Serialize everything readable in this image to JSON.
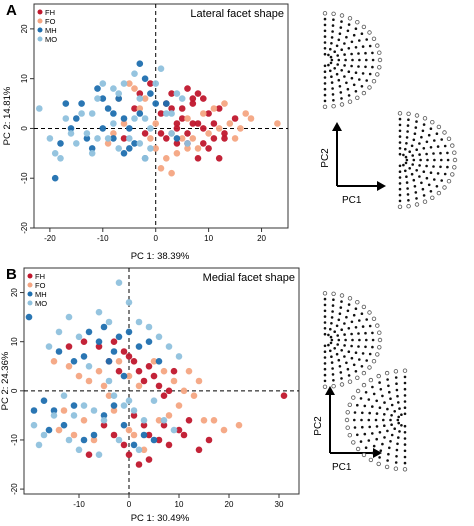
{
  "colors": {
    "FH": "#c0172d",
    "FO": "#f4a582",
    "MH": "#1f6faf",
    "MO": "#8fc1dd",
    "axis": "#333333",
    "landmark": "#555555"
  },
  "chart_data": [
    {
      "type": "scatter",
      "panel_label": "A",
      "title": "Lateral facet shape",
      "xlabel": "PC 1: 38.39%",
      "ylabel": "PC 2: 14.81%",
      "xlim": [
        -23,
        25
      ],
      "ylim": [
        -20,
        25
      ],
      "xticks": [
        -20,
        -10,
        0,
        10,
        20
      ],
      "yticks": [
        -20,
        -10,
        0,
        10,
        20
      ],
      "grid": false,
      "legend_position": "top-left",
      "zero_lines": "dashed",
      "series": [
        {
          "name": "FH",
          "points": [
            [
              1,
              3
            ],
            [
              2,
              -2
            ],
            [
              3,
              4
            ],
            [
              4,
              0
            ],
            [
              5,
              2
            ],
            [
              6,
              -1
            ],
            [
              7,
              5
            ],
            [
              8,
              1
            ],
            [
              9,
              0
            ],
            [
              10,
              3
            ],
            [
              11,
              -2
            ],
            [
              12,
              4
            ],
            [
              13,
              -2
            ],
            [
              6,
              8
            ],
            [
              8,
              7
            ],
            [
              7,
              6
            ],
            [
              3,
              7
            ],
            [
              -1,
              9
            ],
            [
              10,
              -4
            ],
            [
              5,
              4
            ],
            [
              4,
              -3
            ],
            [
              9,
              -3
            ],
            [
              2,
              5
            ],
            [
              11,
              1
            ],
            [
              6,
              -3
            ],
            [
              -3,
              7
            ],
            [
              -4,
              4
            ],
            [
              -2,
              -1
            ],
            [
              -6,
              -2
            ],
            [
              1,
              -1
            ],
            [
              8,
              -6
            ],
            [
              12,
              -6
            ],
            [
              13,
              -1
            ],
            [
              15,
              2
            ],
            [
              4,
              1
            ],
            [
              7,
              1
            ],
            [
              9,
              6
            ]
          ]
        },
        {
          "name": "FO",
          "points": [
            [
              2,
              -6
            ],
            [
              4,
              -5
            ],
            [
              6,
              -4
            ],
            [
              8,
              -4
            ],
            [
              10,
              -1
            ],
            [
              12,
              0
            ],
            [
              14,
              1
            ],
            [
              16,
              0
            ],
            [
              18,
              2
            ],
            [
              23,
              1
            ],
            [
              -5,
              9
            ],
            [
              -4,
              8
            ],
            [
              -2,
              6
            ],
            [
              0,
              1
            ],
            [
              -1,
              -2
            ],
            [
              3,
              -1
            ],
            [
              5,
              -2
            ],
            [
              7,
              -2
            ],
            [
              9,
              3
            ],
            [
              11,
              4
            ],
            [
              -6,
              1
            ],
            [
              -8,
              -1
            ],
            [
              -9,
              -3
            ],
            [
              15,
              -2
            ],
            [
              17,
              3
            ],
            [
              1,
              -8
            ],
            [
              3,
              -9
            ],
            [
              -3,
              4
            ],
            [
              -7,
              6
            ],
            [
              13,
              5
            ],
            [
              6,
              2
            ],
            [
              0,
              -4
            ]
          ]
        },
        {
          "name": "MH",
          "points": [
            [
              -17,
              5
            ],
            [
              -15,
              2
            ],
            [
              -13,
              -2
            ],
            [
              -12,
              -4
            ],
            [
              -10,
              0
            ],
            [
              -9,
              4
            ],
            [
              -8,
              3
            ],
            [
              -7,
              6
            ],
            [
              -6,
              2
            ],
            [
              -5,
              0
            ],
            [
              -4,
              -3
            ],
            [
              -3,
              3
            ],
            [
              -2,
              10
            ],
            [
              -1,
              7
            ],
            [
              0,
              5
            ],
            [
              -19,
              -10
            ],
            [
              -18,
              -3
            ],
            [
              -11,
              8
            ],
            [
              -8,
              -2
            ],
            [
              -5,
              -4
            ],
            [
              -2,
              -6
            ],
            [
              -3,
              13
            ],
            [
              2,
              5
            ],
            [
              4,
              -2
            ],
            [
              -14,
              5
            ],
            [
              -16,
              0
            ],
            [
              -10,
              6
            ],
            [
              -6,
              -5
            ]
          ]
        },
        {
          "name": "MO",
          "points": [
            [
              -22,
              4
            ],
            [
              -20,
              -2
            ],
            [
              -18,
              -6
            ],
            [
              -16,
              -1
            ],
            [
              -14,
              3
            ],
            [
              -13,
              -1
            ],
            [
              -12,
              -5
            ],
            [
              -11,
              6
            ],
            [
              -10,
              9
            ],
            [
              -9,
              -2
            ],
            [
              -8,
              1
            ],
            [
              -7,
              7
            ],
            [
              -6,
              9
            ],
            [
              -5,
              -2
            ],
            [
              -4,
              2
            ],
            [
              -3,
              6
            ],
            [
              -2,
              -6
            ],
            [
              -1,
              0
            ],
            [
              0,
              9
            ],
            [
              1,
              12
            ],
            [
              2,
              3
            ],
            [
              3,
              -1
            ],
            [
              4,
              7
            ],
            [
              5,
              6
            ],
            [
              6,
              -3
            ],
            [
              -15,
              -3
            ],
            [
              -17,
              2
            ],
            [
              -11,
              -2
            ],
            [
              -19,
              -5
            ],
            [
              -12,
              3
            ],
            [
              -2,
              2
            ],
            [
              -7,
              -4
            ],
            [
              -3,
              -3
            ],
            [
              3,
              3
            ],
            [
              -1,
              -4
            ],
            [
              -8,
              8
            ],
            [
              -4,
              11
            ]
          ]
        }
      ]
    },
    {
      "type": "scatter",
      "panel_label": "B",
      "title": "Medial facet shape",
      "xlabel": "PC 1: 30.49%",
      "ylabel": "PC 2: 24.36%",
      "xlim": [
        -21,
        34
      ],
      "ylim": [
        -21,
        25
      ],
      "xticks": [
        -10,
        0,
        10,
        20,
        30
      ],
      "yticks": [
        -20,
        -10,
        0,
        10,
        20
      ],
      "grid": false,
      "legend_position": "top-left",
      "zero_lines": "dashed",
      "series": [
        {
          "name": "FH",
          "points": [
            [
              -3,
              10
            ],
            [
              -1,
              8
            ],
            [
              0,
              7
            ],
            [
              1,
              6
            ],
            [
              2,
              4
            ],
            [
              3,
              2
            ],
            [
              4,
              5
            ],
            [
              5,
              3
            ],
            [
              6,
              1
            ],
            [
              7,
              -1
            ],
            [
              8,
              0
            ],
            [
              -6,
              9
            ],
            [
              -4,
              6
            ],
            [
              -2,
              4
            ],
            [
              1,
              -5
            ],
            [
              3,
              -7
            ],
            [
              4,
              -9
            ],
            [
              6,
              -10
            ],
            [
              8,
              -11
            ],
            [
              10,
              -8
            ],
            [
              12,
              -6
            ],
            [
              14,
              -12
            ],
            [
              -5,
              -7
            ],
            [
              -3,
              -9
            ],
            [
              -1,
              -11
            ],
            [
              0,
              -13
            ],
            [
              2,
              -15
            ],
            [
              4,
              -14
            ],
            [
              7,
              -7
            ],
            [
              11,
              -9
            ],
            [
              31,
              -1
            ],
            [
              16,
              -10
            ],
            [
              -12,
              9
            ],
            [
              -9,
              10
            ],
            [
              -8,
              -13
            ],
            [
              9,
              4
            ]
          ]
        },
        {
          "name": "FO",
          "points": [
            [
              -15,
              6
            ],
            [
              -12,
              5
            ],
            [
              -10,
              3
            ],
            [
              -8,
              2
            ],
            [
              -6,
              4
            ],
            [
              -5,
              1
            ],
            [
              -4,
              -1
            ],
            [
              -2,
              6
            ],
            [
              0,
              3
            ],
            [
              2,
              1
            ],
            [
              5,
              6
            ],
            [
              7,
              4
            ],
            [
              9,
              2
            ],
            [
              11,
              0
            ],
            [
              12,
              4
            ],
            [
              13,
              -1
            ],
            [
              15,
              -6
            ],
            [
              17,
              -6
            ],
            [
              19,
              -8
            ],
            [
              22,
              -7
            ],
            [
              -13,
              -4
            ],
            [
              -11,
              -9
            ],
            [
              -9,
              -6
            ],
            [
              -7,
              -10
            ],
            [
              -3,
              -4
            ],
            [
              1,
              -9
            ],
            [
              3,
              -12
            ],
            [
              6,
              -6
            ],
            [
              8,
              -5
            ],
            [
              -14,
              -8
            ],
            [
              0,
              -8
            ],
            [
              14,
              2
            ],
            [
              10,
              -3
            ]
          ]
        },
        {
          "name": "MH",
          "points": [
            [
              -20,
              15
            ],
            [
              -14,
              8
            ],
            [
              -11,
              6
            ],
            [
              -9,
              7
            ],
            [
              -8,
              12
            ],
            [
              -6,
              10
            ],
            [
              -5,
              13
            ],
            [
              -4,
              6
            ],
            [
              -3,
              8
            ],
            [
              -2,
              11
            ],
            [
              -1,
              3
            ],
            [
              0,
              12
            ],
            [
              2,
              9
            ],
            [
              4,
              10
            ],
            [
              6,
              6
            ],
            [
              -17,
              -2
            ],
            [
              -15,
              -4
            ],
            [
              -13,
              -7
            ],
            [
              -11,
              -3
            ],
            [
              -9,
              -10
            ],
            [
              -7,
              -9
            ],
            [
              -5,
              -5
            ],
            [
              -3,
              -3
            ],
            [
              -1,
              -7
            ],
            [
              1,
              -11
            ],
            [
              3,
              -9
            ],
            [
              5,
              -10
            ],
            [
              -19,
              -4
            ],
            [
              -16,
              -8
            ]
          ]
        },
        {
          "name": "MO",
          "points": [
            [
              -19,
              -7
            ],
            [
              -17,
              -9
            ],
            [
              -15,
              -5
            ],
            [
              -13,
              -1
            ],
            [
              -11,
              -5
            ],
            [
              -9,
              -3
            ],
            [
              -7,
              -4
            ],
            [
              -5,
              -6
            ],
            [
              -3,
              -1
            ],
            [
              -1,
              -3
            ],
            [
              1,
              -4
            ],
            [
              3,
              -6
            ],
            [
              5,
              -2
            ],
            [
              7,
              -6
            ],
            [
              9,
              -8
            ],
            [
              -16,
              9
            ],
            [
              -14,
              12
            ],
            [
              -12,
              15
            ],
            [
              -10,
              11
            ],
            [
              -8,
              5
            ],
            [
              -6,
              16
            ],
            [
              -4,
              14
            ],
            [
              -2,
              22
            ],
            [
              0,
              18
            ],
            [
              2,
              14
            ],
            [
              4,
              13
            ],
            [
              6,
              11
            ],
            [
              8,
              9
            ],
            [
              10,
              7
            ],
            [
              -18,
              -11
            ],
            [
              -10,
              -12
            ],
            [
              -6,
              -13
            ],
            [
              -2,
              -10
            ],
            [
              2,
              -12
            ],
            [
              -12,
              -10
            ],
            [
              -4,
              2
            ],
            [
              0,
              -2
            ]
          ]
        }
      ]
    }
  ],
  "pc_diagrams": [
    {
      "panel_label": "A",
      "x_axis_label": "PC1",
      "y_axis_label": "PC2"
    },
    {
      "panel_label": "B",
      "x_axis_label": "PC1",
      "y_axis_label": "PC2"
    }
  ]
}
